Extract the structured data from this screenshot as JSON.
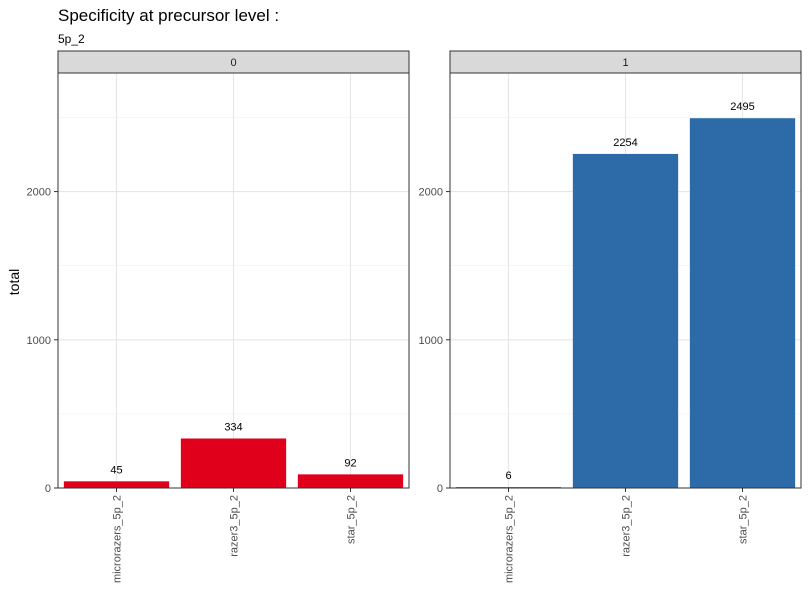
{
  "chart_data": {
    "type": "bar",
    "title": "Specificity at precursor level :",
    "subtitle": "5p_2",
    "xlabel": "",
    "ylabel": "total",
    "ylim": [
      0,
      2800
    ],
    "yticks": [
      0,
      1000,
      2000
    ],
    "grid": true,
    "categories": [
      "microrazers_5p_2",
      "razer3_5p_2",
      "star_5p_2"
    ],
    "panels": [
      {
        "strip": "0",
        "color": "#E0001B",
        "values": [
          45,
          334,
          92
        ],
        "labels": [
          "45",
          "334",
          "92"
        ]
      },
      {
        "strip": "1",
        "color": "#2D6BA8",
        "values": [
          6,
          2254,
          2495
        ],
        "labels": [
          "6",
          "2254",
          "2495"
        ]
      }
    ]
  }
}
